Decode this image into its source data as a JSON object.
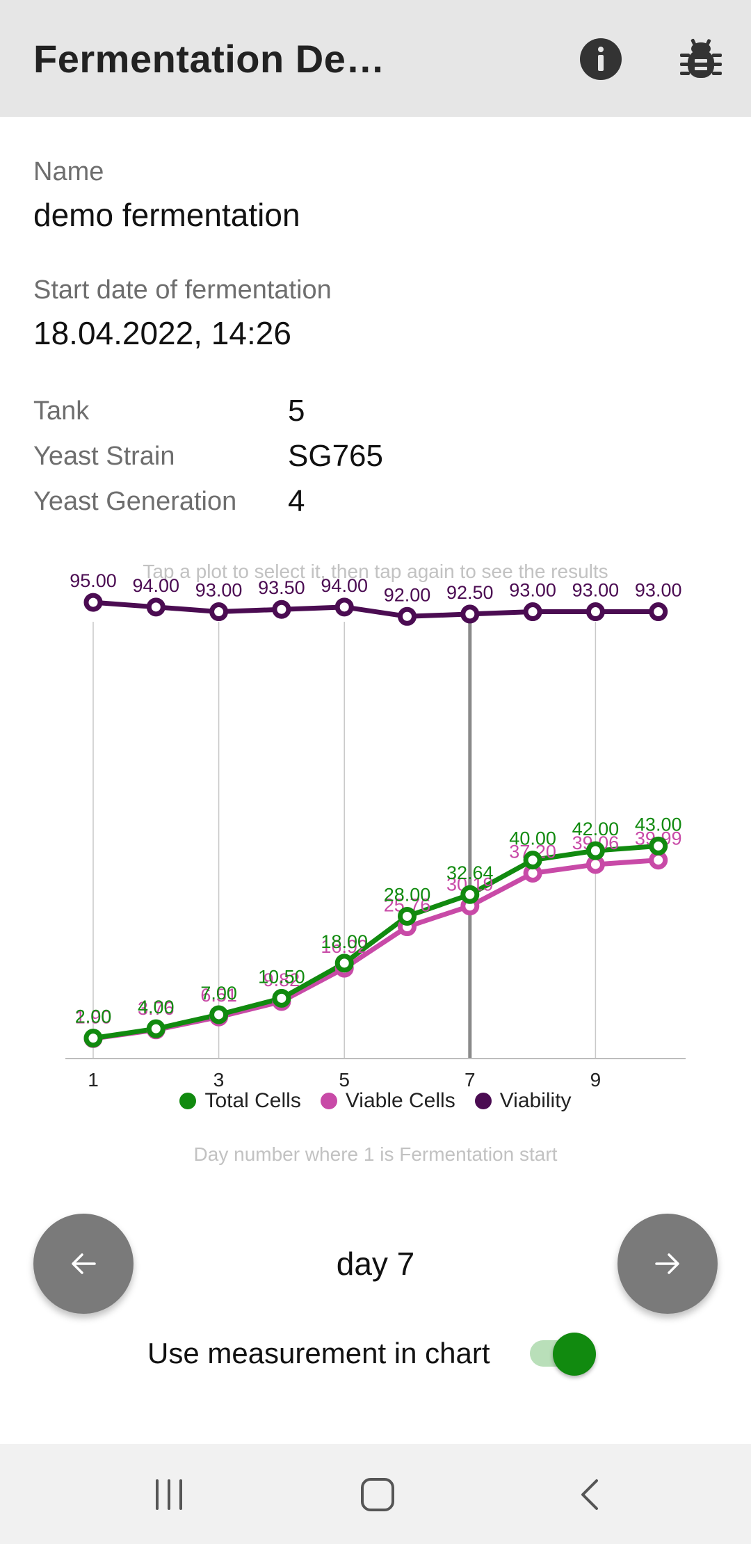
{
  "app_bar": {
    "title": "Fermentation De…",
    "info_icon": "info-icon",
    "bug_icon": "bug-icon"
  },
  "details": {
    "name_label": "Name",
    "name_value": "demo fermentation",
    "start_label": "Start date of fermentation",
    "start_value": "18.04.2022, 14:26",
    "tank_label": "Tank",
    "tank_value": "5",
    "strain_label": "Yeast Strain",
    "strain_value": "SG765",
    "generation_label": "Yeast Generation",
    "generation_value": "4"
  },
  "chart_hint": "Tap a plot to select it, then tap again to see the results",
  "x_axis_caption": "Day number where 1 is Fermentation start",
  "chart_data": {
    "type": "line",
    "x": [
      1,
      2,
      3,
      4,
      5,
      6,
      7,
      8,
      9,
      10
    ],
    "x_tick_labels": [
      "1",
      "3",
      "5",
      "7",
      "9"
    ],
    "selected_x": 7,
    "grid": "vertical",
    "legend_position": "bottom",
    "series": [
      {
        "name": "Total Cells",
        "color": "#118a0f",
        "values": [
          2.0,
          4.0,
          7.0,
          10.5,
          18.0,
          28.0,
          32.64,
          40.0,
          42.0,
          43.0
        ],
        "labels": [
          "2.00",
          "4.00",
          "7.00",
          "10.50",
          "18.00",
          "28.00",
          "32.64",
          "40.00",
          "42.00",
          "43.00"
        ]
      },
      {
        "name": "Viable Cells",
        "color": "#c84aa7",
        "values": [
          1.9,
          3.76,
          6.51,
          9.82,
          16.92,
          25.76,
          30.19,
          37.2,
          39.06,
          39.99
        ],
        "labels": [
          "1.90",
          "3.76",
          "6.51",
          "9.82",
          "16.92",
          "25.76",
          "30.19",
          "37.20",
          "39.06",
          "39.99"
        ]
      },
      {
        "name": "Viability",
        "color": "#4b0c52",
        "values": [
          95.0,
          94.0,
          93.0,
          93.5,
          94.0,
          92.0,
          92.5,
          93.0,
          93.0,
          93.0
        ],
        "labels": [
          "95.00",
          "94.00",
          "93.00",
          "93.50",
          "94.00",
          "92.00",
          "92.50",
          "93.00",
          "93.00",
          "93.00"
        ]
      }
    ]
  },
  "day_nav": {
    "prev_icon": "arrow-left-icon",
    "next_icon": "arrow-right-icon",
    "day_label": "day 7"
  },
  "toggle": {
    "label": "Use measurement in chart",
    "on": true,
    "color": "#118a0f"
  },
  "system_nav": {
    "recents_icon": "recents-icon",
    "home_icon": "home-icon",
    "back_icon": "back-icon"
  }
}
